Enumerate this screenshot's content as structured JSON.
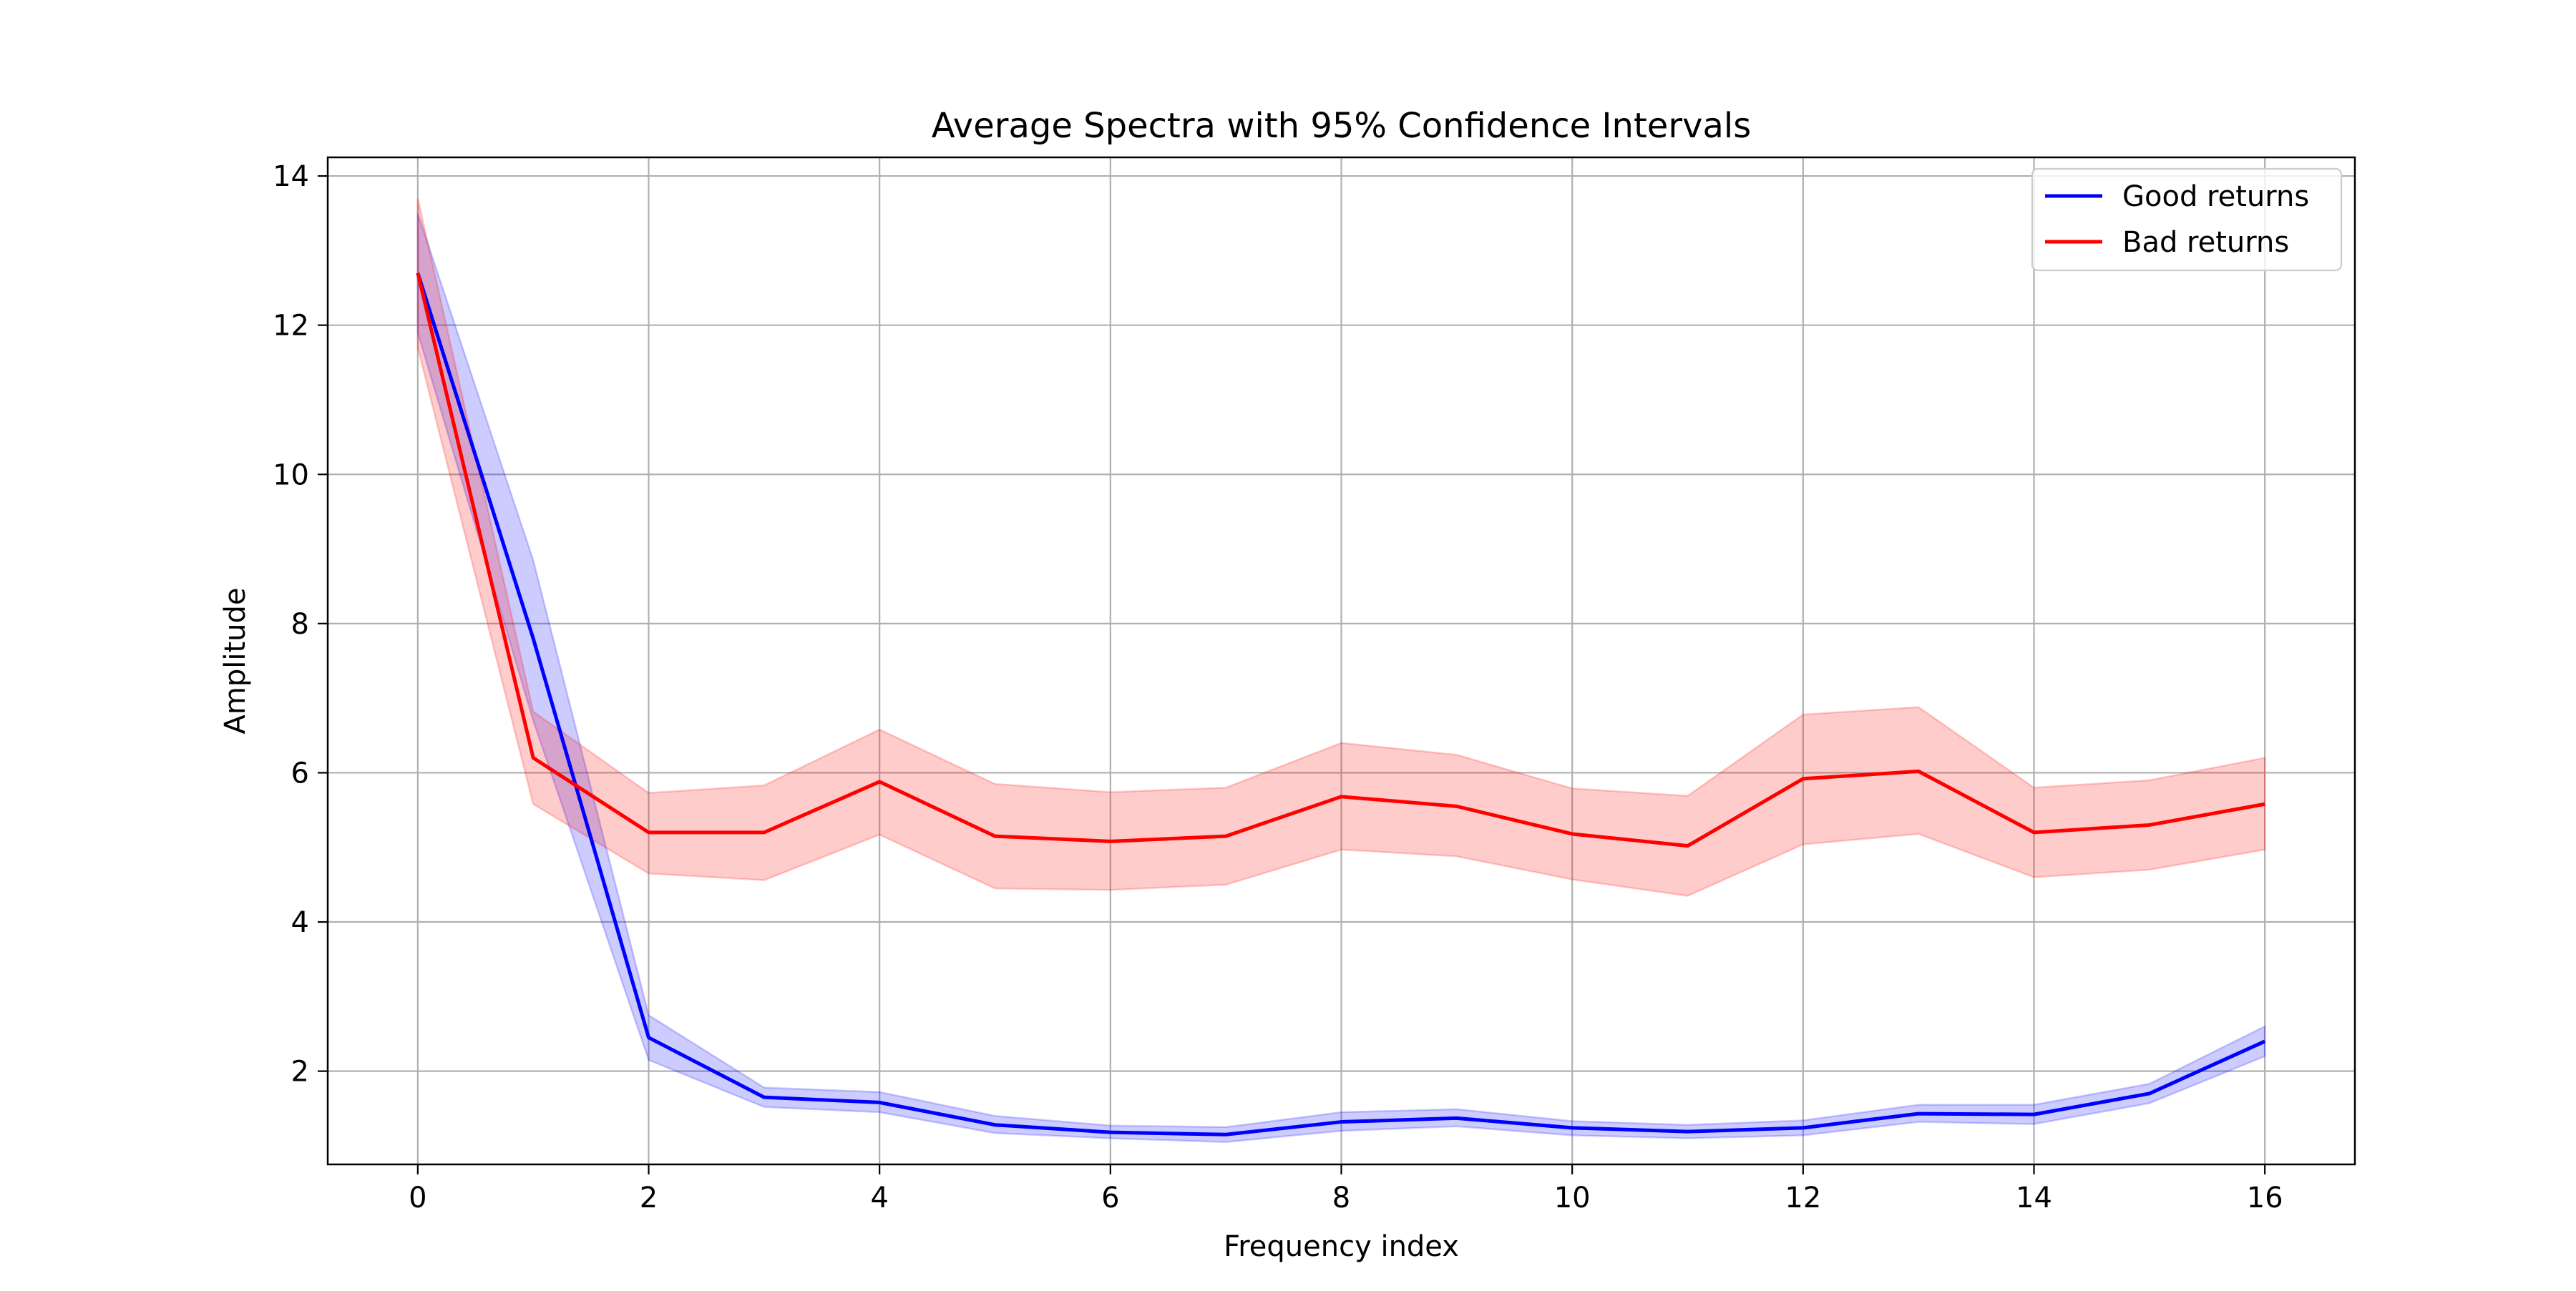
{
  "chart_data": {
    "type": "line",
    "title": "Average Spectra with 95% Confidence Intervals",
    "xlabel": "Frequency index",
    "ylabel": "Amplitude",
    "xlim": [
      -0.78,
      16.78
    ],
    "ylim": [
      0.75,
      14.25
    ],
    "xticks": [
      0,
      2,
      4,
      6,
      8,
      10,
      12,
      14,
      16
    ],
    "yticks": [
      2,
      4,
      6,
      8,
      10,
      12,
      14
    ],
    "grid": true,
    "legend_position": "top-right",
    "x": [
      0,
      1,
      2,
      3,
      4,
      5,
      6,
      7,
      8,
      9,
      10,
      11,
      12,
      13,
      14,
      15,
      16
    ],
    "series": [
      {
        "name": "Good returns",
        "color": "#0000ff",
        "band_color": "#0000ff",
        "values": [
          12.7,
          7.8,
          2.45,
          1.65,
          1.58,
          1.28,
          1.18,
          1.15,
          1.32,
          1.37,
          1.24,
          1.19,
          1.24,
          1.43,
          1.42,
          1.7,
          2.4
        ],
        "lower": [
          11.9,
          6.7,
          2.15,
          1.52,
          1.45,
          1.17,
          1.1,
          1.05,
          1.2,
          1.26,
          1.14,
          1.1,
          1.14,
          1.32,
          1.29,
          1.57,
          2.2
        ],
        "upper": [
          13.5,
          8.85,
          2.75,
          1.78,
          1.72,
          1.4,
          1.27,
          1.25,
          1.45,
          1.49,
          1.33,
          1.28,
          1.34,
          1.55,
          1.55,
          1.83,
          2.6
        ]
      },
      {
        "name": "Bad returns",
        "color": "#ff0000",
        "band_color": "#ff0000",
        "values": [
          12.7,
          6.2,
          5.2,
          5.2,
          5.88,
          5.15,
          5.08,
          5.15,
          5.68,
          5.55,
          5.18,
          5.02,
          5.92,
          6.02,
          5.2,
          5.3,
          5.58
        ],
        "lower": [
          11.7,
          5.58,
          4.65,
          4.56,
          5.17,
          4.45,
          4.43,
          4.5,
          4.97,
          4.88,
          4.57,
          4.35,
          5.04,
          5.18,
          4.6,
          4.7,
          4.97
        ],
        "upper": [
          13.7,
          6.82,
          5.73,
          5.83,
          6.58,
          5.85,
          5.74,
          5.8,
          6.4,
          6.24,
          5.79,
          5.69,
          6.78,
          6.88,
          5.8,
          5.9,
          6.2
        ]
      }
    ]
  }
}
